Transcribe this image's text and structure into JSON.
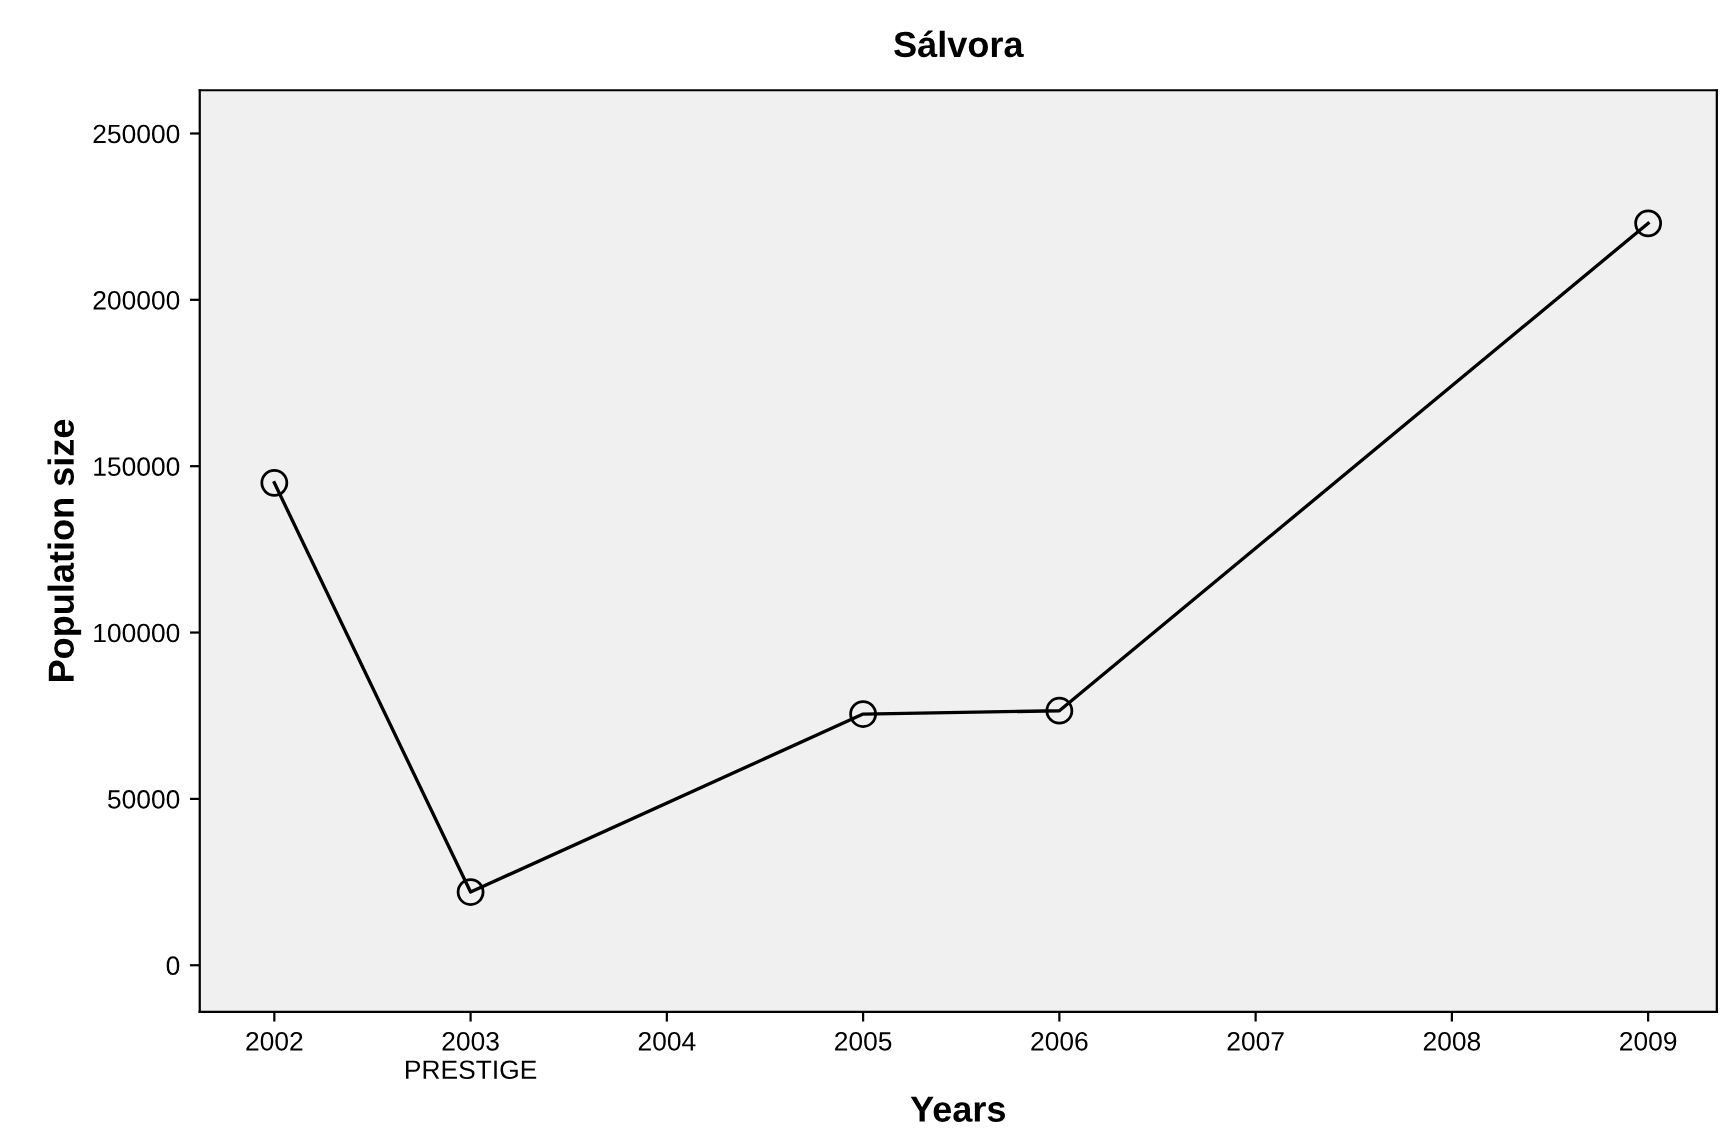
{
  "chart_data": {
    "type": "line",
    "title": "Sálvora",
    "xlabel": "Years",
    "ylabel": "Population size",
    "x": [
      2002,
      2003,
      2005,
      2006,
      2009
    ],
    "series": [
      {
        "color": "#000000",
        "values": [
          145000,
          22000,
          75500,
          76500,
          223000
        ]
      }
    ],
    "xlim": [
      2001.62,
      2009.35
    ],
    "ylim": [
      -14000,
      263000
    ],
    "xticks": [
      2002,
      {
        "value": 2003,
        "label": "2003\nPRESTIGE"
      },
      2004,
      2005,
      2006,
      2007,
      2008,
      2009
    ],
    "yticks": [
      0,
      50000,
      100000,
      150000,
      200000,
      250000
    ],
    "marker": "circle",
    "line_style": "solid",
    "grid": false,
    "legend": false
  }
}
